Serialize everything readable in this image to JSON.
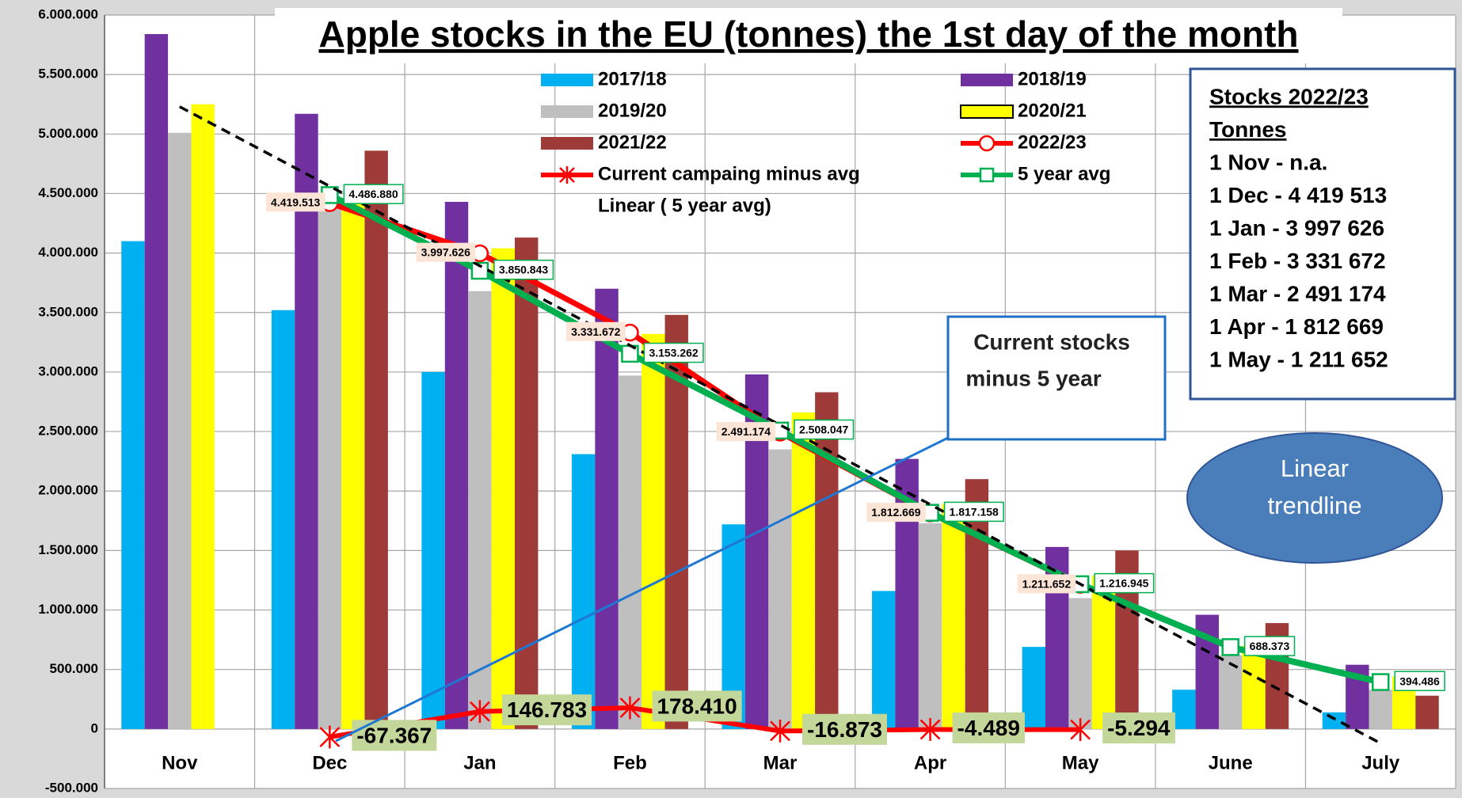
{
  "chart_data": {
    "type": "bar",
    "title": "Apple stocks in the EU (tonnes) the 1st day of the month",
    "categories": [
      "Nov",
      "Dec",
      "Jan",
      "Feb",
      "Mar",
      "Apr",
      "May",
      "June",
      "July"
    ],
    "ylim": [
      -500000,
      6000000
    ],
    "yticks": [
      {
        "value": -500000,
        "label": "-500.000"
      },
      0,
      {
        "value": 500000,
        "label": "500.000"
      },
      {
        "value": 1000000,
        "label": "1.000.000"
      },
      {
        "value": 1500000,
        "label": "1.500.000"
      },
      {
        "value": 2000000,
        "label": "2.000.000"
      },
      {
        "value": 2500000,
        "label": "2.500.000"
      },
      {
        "value": 3000000,
        "label": "3.000.000"
      },
      {
        "value": 3500000,
        "label": "3.500.000"
      },
      {
        "value": 4000000,
        "label": "4.000.000"
      },
      {
        "value": 4500000,
        "label": "4.500.000"
      },
      {
        "value": 5000000,
        "label": "5.000.000"
      },
      {
        "value": 5500000,
        "label": "5.500.000"
      },
      {
        "value": 6000000,
        "label": "6.000.000"
      }
    ],
    "grid": true,
    "series": [
      {
        "name": "2017/18",
        "type": "bar",
        "color": "#00b0f0",
        "values": [
          4100000,
          3520000,
          3000000,
          2310000,
          1720000,
          1160000,
          690000,
          330000,
          140000
        ]
      },
      {
        "name": "2018/19",
        "type": "bar",
        "color": "#7030a0",
        "values": [
          5840000,
          5170000,
          4430000,
          3700000,
          2980000,
          2270000,
          1530000,
          960000,
          540000
        ]
      },
      {
        "name": "2019/20",
        "type": "bar",
        "color": "#bfbfbf",
        "values": [
          5010000,
          4420000,
          3680000,
          2970000,
          2350000,
          1730000,
          1100000,
          620000,
          330000
        ]
      },
      {
        "name": "2020/21",
        "type": "bar",
        "color": "#ffff00",
        "values": [
          5250000,
          4450000,
          4040000,
          3320000,
          2660000,
          1890000,
          1290000,
          700000,
          440000
        ]
      },
      {
        "name": "2021/22",
        "type": "bar",
        "color": "#9e3b38",
        "values": [
          null,
          4860000,
          4130000,
          3480000,
          2830000,
          2100000,
          1500000,
          890000,
          280000
        ]
      },
      {
        "name": "2022/23",
        "type": "line",
        "marker": "circle",
        "color": "#ff0000",
        "values": [
          null,
          4419513,
          3997626,
          3331672,
          2491174,
          1812669,
          1211652,
          null,
          null
        ],
        "value_labels": [
          null,
          "4.419.513",
          "3.997.626",
          "3.331.672",
          "2.491.174",
          "1.812.669",
          "1.211.652",
          null,
          null
        ]
      },
      {
        "name": "Current campaing minus avg",
        "type": "line",
        "marker": "star",
        "color": "#ff0000",
        "values": [
          null,
          -67367,
          146783,
          178410,
          -16873,
          -4489,
          -5294,
          null,
          null
        ],
        "value_labels": [
          null,
          "-67.367",
          "146.783",
          "178.410",
          "-16.873",
          "-4.489",
          "-5.294",
          null,
          null
        ]
      },
      {
        "name": "5 year avg",
        "type": "line",
        "marker": "square",
        "color": "#00b050",
        "values": [
          null,
          4486880,
          3850843,
          3153262,
          2508047,
          1817158,
          1216945,
          688373,
          394486
        ],
        "value_labels": [
          null,
          "4.486.880",
          "3.850.843",
          "3.153.262",
          "2.508.047",
          "1.817.158",
          "1.216.945",
          "688.373",
          "394.486"
        ]
      },
      {
        "name": "Linear ( 5 year avg)",
        "type": "trend",
        "color": "#000000",
        "values": [
          5230000,
          4561250,
          3892500,
          3223750,
          2555000,
          1886250,
          1217500,
          548750,
          -120000
        ]
      }
    ],
    "stocks_box": {
      "lines": [
        "Stocks 2022/23",
        "Tonnes",
        "1 Nov - n.a.",
        "1 Dec - 4 419 513",
        "1 Jan - 3 997 626",
        "1 Feb - 3 331 672",
        "1 Mar - 2 491 174",
        "1 Apr - 1 812 669",
        "1 May - 1 211 652"
      ]
    },
    "annotations": [
      "Current stocks",
      "minus 5 year",
      "Linear",
      "trendline"
    ]
  }
}
